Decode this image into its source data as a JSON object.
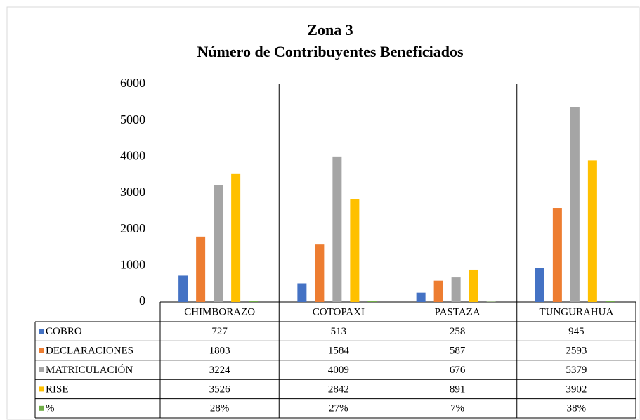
{
  "chart_data": {
    "type": "bar",
    "title": "Zona 3",
    "subtitle": "Número de Contribuyentes Beneficiados",
    "categories": [
      "CHIMBORAZO",
      "COTOPAXI",
      "PASTAZA",
      "TUNGURAHUA"
    ],
    "series": [
      {
        "name": "COBRO",
        "color": "#4472c4",
        "values": [
          727,
          513,
          258,
          945
        ]
      },
      {
        "name": "DECLARACIONES",
        "color": "#ed7d31",
        "values": [
          1803,
          1584,
          587,
          2593
        ]
      },
      {
        "name": "MATRICULACIÓN",
        "color": "#a5a5a5",
        "values": [
          3224,
          4009,
          676,
          5379
        ]
      },
      {
        "name": "RISE",
        "color": "#ffc000",
        "values": [
          3526,
          2842,
          891,
          3902
        ]
      },
      {
        "name": "%",
        "color": "#70ad47",
        "values": [
          28,
          27,
          7,
          38
        ],
        "value_labels": [
          "28%",
          "27%",
          "7%",
          "38%"
        ]
      }
    ],
    "ylim": [
      0,
      6000
    ],
    "yticks": [
      0,
      1000,
      2000,
      3000,
      4000,
      5000,
      6000
    ]
  }
}
